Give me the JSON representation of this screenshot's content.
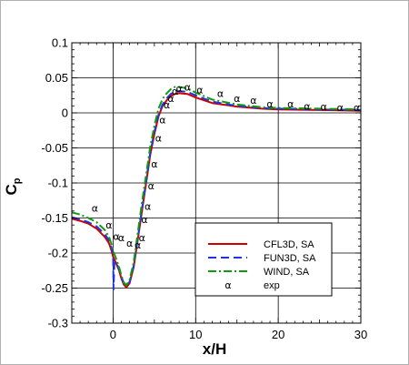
{
  "chart_data": {
    "type": "line",
    "xlabel": "x/H",
    "ylabel": "C",
    "ylabel_sub": "p",
    "xlim": [
      -5,
      30
    ],
    "ylim": [
      -0.3,
      0.1
    ],
    "xticks": [
      0,
      10,
      20,
      30
    ],
    "xtick_labels": [
      "0",
      "10",
      "20",
      "30"
    ],
    "yticks": [
      -0.3,
      -0.25,
      -0.2,
      -0.15,
      -0.1,
      -0.05,
      0,
      0.05,
      0.1
    ],
    "ytick_labels": [
      "-0.3",
      "-0.25",
      "-0.2",
      "-0.15",
      "-0.1",
      "-0.05",
      "0",
      "0.05",
      "0.1"
    ],
    "grid": true,
    "legend_position": "lower-right",
    "series": [
      {
        "name": "CFL3D, SA",
        "color": "#cc0000",
        "style": "solid",
        "x": [
          -5,
          -4,
          -3,
          -2,
          -1,
          -0.5,
          -0.2,
          0,
          0.3,
          0.7,
          1.0,
          1.3,
          1.6,
          2.0,
          2.5,
          3.0,
          3.5,
          4.0,
          4.5,
          5.0,
          5.5,
          6.0,
          6.5,
          7.0,
          7.5,
          8.0,
          9.0,
          10,
          12,
          15,
          18,
          20,
          25,
          30
        ],
        "y": [
          -0.151,
          -0.154,
          -0.158,
          -0.165,
          -0.177,
          -0.186,
          -0.196,
          -0.205,
          -0.213,
          -0.224,
          -0.236,
          -0.245,
          -0.249,
          -0.243,
          -0.22,
          -0.18,
          -0.14,
          -0.1,
          -0.06,
          -0.03,
          -0.005,
          0.01,
          0.018,
          0.024,
          0.027,
          0.028,
          0.027,
          0.022,
          0.014,
          0.009,
          0.006,
          0.005,
          0.004,
          0.003
        ]
      },
      {
        "name": "FUN3D, SA",
        "color": "#2233dd",
        "style": "dashed",
        "x": [
          -5,
          -4,
          -3,
          -2,
          -1,
          -0.5,
          -0.2,
          0,
          0.05,
          0.15,
          0.3,
          0.7,
          1.0,
          1.3,
          1.6,
          2.0,
          2.5,
          3.0,
          3.5,
          4.0,
          4.5,
          5.0,
          5.5,
          6.0,
          6.5,
          7.0,
          7.5,
          8.0,
          9.0,
          10,
          12,
          15,
          18,
          20,
          25,
          30
        ],
        "y": [
          -0.149,
          -0.152,
          -0.156,
          -0.162,
          -0.173,
          -0.182,
          -0.192,
          -0.2,
          -0.252,
          -0.215,
          -0.212,
          -0.222,
          -0.234,
          -0.243,
          -0.247,
          -0.241,
          -0.218,
          -0.178,
          -0.137,
          -0.097,
          -0.057,
          -0.027,
          -0.003,
          0.012,
          0.021,
          0.027,
          0.03,
          0.031,
          0.03,
          0.025,
          0.016,
          0.01,
          0.007,
          0.006,
          0.005,
          0.004
        ]
      },
      {
        "name": "WIND, SA",
        "color": "#119911",
        "style": "dash-dot",
        "x": [
          -5,
          -4,
          -3,
          -2,
          -1,
          -0.5,
          -0.2,
          0,
          0.3,
          0.7,
          1.0,
          1.3,
          1.6,
          2.0,
          2.5,
          3.0,
          3.5,
          4.0,
          4.5,
          5.0,
          5.5,
          6.0,
          6.5,
          7.0,
          7.5,
          8.0,
          9.0,
          10,
          12,
          15,
          18,
          20,
          25,
          30
        ],
        "y": [
          -0.142,
          -0.145,
          -0.15,
          -0.156,
          -0.167,
          -0.177,
          -0.187,
          -0.197,
          -0.206,
          -0.219,
          -0.232,
          -0.242,
          -0.246,
          -0.238,
          -0.213,
          -0.17,
          -0.128,
          -0.088,
          -0.048,
          -0.018,
          0.006,
          0.02,
          0.028,
          0.034,
          0.037,
          0.037,
          0.035,
          0.029,
          0.019,
          0.012,
          0.008,
          0.007,
          0.006,
          0.005
        ]
      }
    ],
    "scatter": {
      "name": "exp",
      "marker": "α",
      "color": "#000000",
      "x": [
        -2.2,
        -0.5,
        0.4,
        1.0,
        2.0,
        3.0,
        3.5,
        3.8,
        4.2,
        4.6,
        5.0,
        5.5,
        6.0,
        6.5,
        7.0,
        7.5,
        8.0,
        9.0,
        10.5,
        13.0,
        15.0,
        17.0,
        19.0,
        21.5,
        23.5,
        25.5,
        27.5,
        29.5
      ],
      "y": [
        -0.136,
        -0.16,
        -0.176,
        -0.178,
        -0.186,
        -0.188,
        -0.178,
        -0.152,
        -0.133,
        -0.104,
        -0.073,
        -0.036,
        -0.01,
        0.012,
        0.021,
        0.031,
        0.035,
        0.037,
        0.033,
        0.028,
        0.021,
        0.018,
        0.013,
        0.013,
        0.01,
        0.009,
        0.008,
        0.008
      ]
    }
  }
}
